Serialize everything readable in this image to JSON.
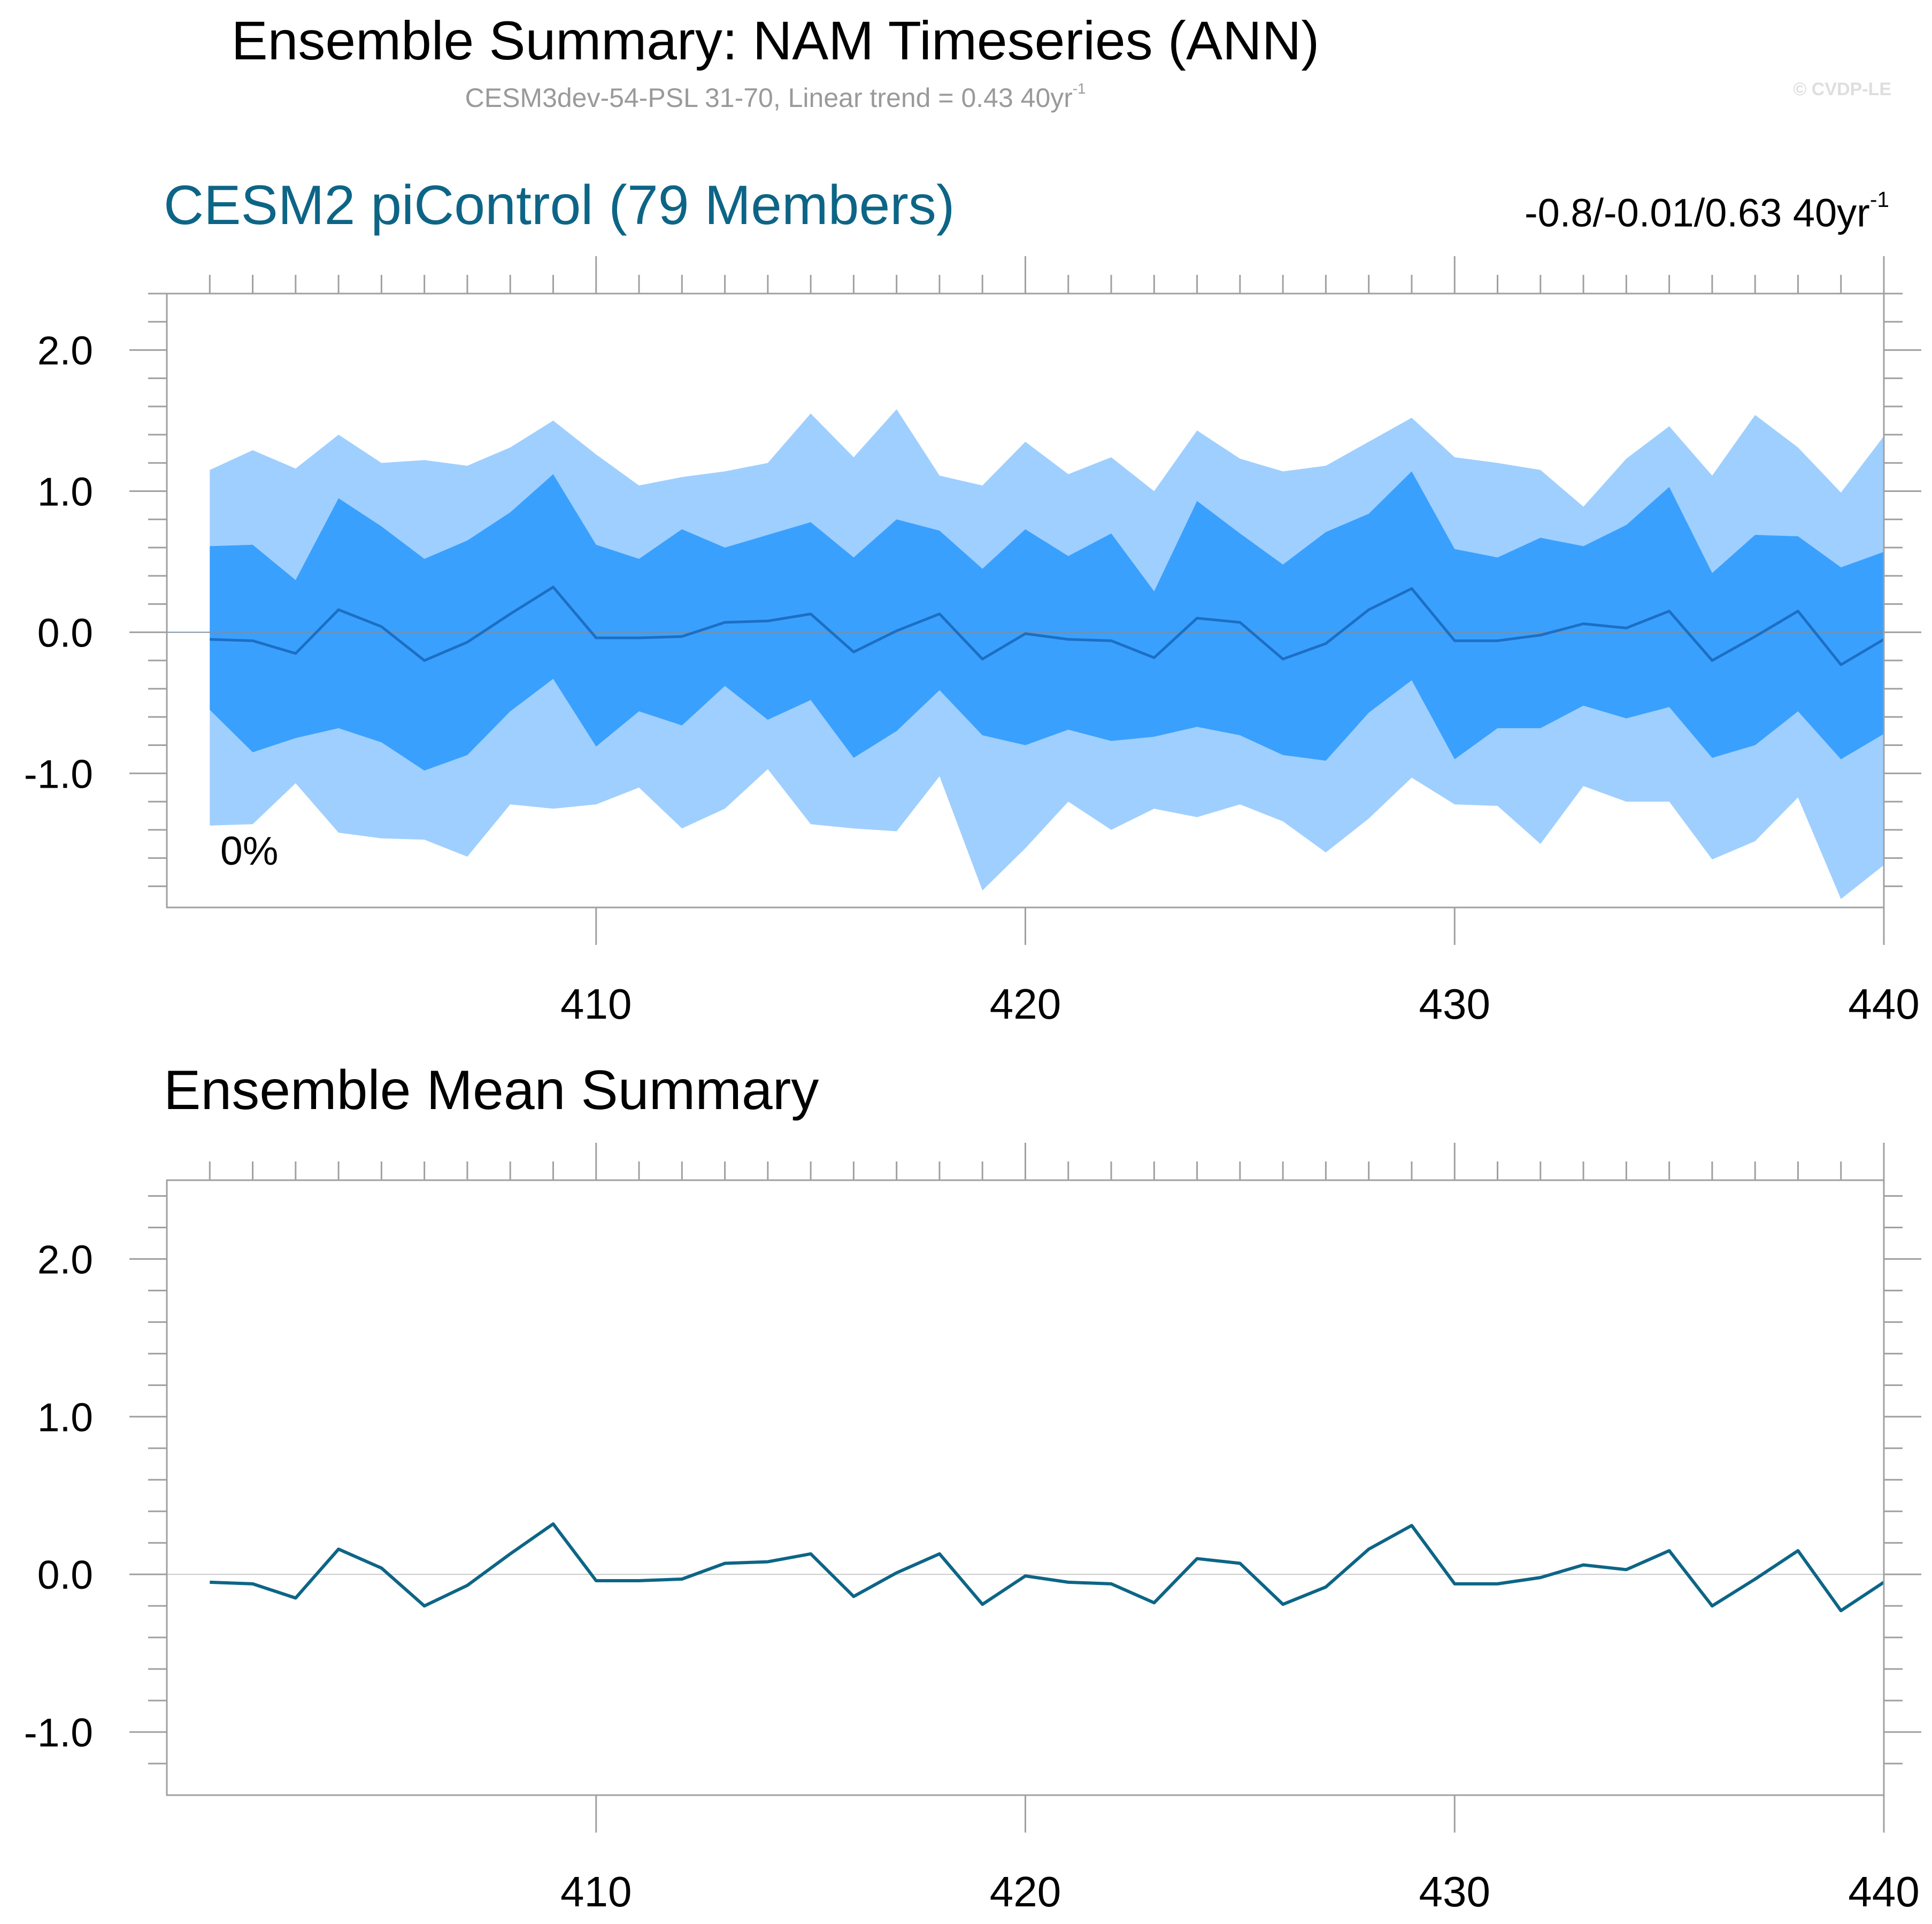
{
  "header": {
    "title": "Ensemble Summary: NAM Timeseries (ANN)",
    "subtitle": "CESM3dev-54-PSL 31-70, Linear trend = 0.43 40yr",
    "subtitle_sup": "-1",
    "copyright": "© CVDP-LE"
  },
  "colors": {
    "outer_band": "#9fcffe",
    "inner_band": "#3aa0fe",
    "ensemble_mean_line_panel1": "#1c6fc4",
    "ensemble_mean_line_panel2": "#0d6586",
    "panel1_title": "#0d6586",
    "frame": "#a0a0a0"
  },
  "chart_data": [
    {
      "type": "area",
      "title": "CESM2 piControl (79 Members)",
      "stats_text": "-0.8/-0.01/0.63 40yr",
      "stats_sup": "-1",
      "annotation": "0%",
      "xlim": [
        400,
        440
      ],
      "ylim": [
        -1.95,
        2.4
      ],
      "xticks": [
        410,
        420,
        430,
        440
      ],
      "xtick_labels": [
        "410",
        "420",
        "430",
        "440"
      ],
      "yticks": [
        -1.0,
        0.0,
        1.0,
        2.0
      ],
      "ytick_labels": [
        "-1.0",
        "0.0",
        "1.0",
        "2.0"
      ],
      "x": [
        401,
        402,
        403,
        404,
        405,
        406,
        407,
        408,
        409,
        410,
        411,
        412,
        413,
        414,
        415,
        416,
        417,
        418,
        419,
        420,
        421,
        422,
        423,
        424,
        425,
        426,
        427,
        428,
        429,
        430,
        431,
        432,
        433,
        434,
        435,
        436,
        437,
        438,
        439,
        440
      ],
      "series": [
        {
          "band": "max",
          "values": [
            1.15,
            1.29,
            1.16,
            1.4,
            1.2,
            1.22,
            1.18,
            1.31,
            1.5,
            1.26,
            1.04,
            1.1,
            1.14,
            1.2,
            1.55,
            1.24,
            1.58,
            1.11,
            1.04,
            1.35,
            1.12,
            1.24,
            1.0,
            1.43,
            1.23,
            1.14,
            1.18,
            1.35,
            1.52,
            1.24,
            1.2,
            1.15,
            0.89,
            1.23,
            1.46,
            1.11,
            1.54,
            1.31,
            0.99,
            1.39
          ]
        },
        {
          "band": "upper",
          "values": [
            0.61,
            0.62,
            0.37,
            0.95,
            0.75,
            0.52,
            0.65,
            0.85,
            1.12,
            0.62,
            0.52,
            0.73,
            0.6,
            0.69,
            0.78,
            0.53,
            0.8,
            0.72,
            0.45,
            0.73,
            0.54,
            0.7,
            0.29,
            0.93,
            0.7,
            0.48,
            0.71,
            0.84,
            1.14,
            0.59,
            0.53,
            0.67,
            0.61,
            0.76,
            1.03,
            0.42,
            0.69,
            0.68,
            0.46,
            0.57
          ]
        },
        {
          "name": "",
          "band": "mean",
          "values": [
            -0.05,
            -0.06,
            -0.15,
            0.16,
            0.04,
            -0.2,
            -0.07,
            0.13,
            0.32,
            -0.04,
            -0.04,
            -0.03,
            0.07,
            0.08,
            0.13,
            -0.14,
            0.01,
            0.13,
            -0.19,
            -0.01,
            -0.05,
            -0.06,
            -0.18,
            0.1,
            0.07,
            -0.19,
            -0.08,
            0.16,
            0.31,
            -0.06,
            -0.06,
            -0.02,
            0.06,
            0.03,
            0.15,
            -0.2,
            -0.03,
            0.15,
            -0.23,
            -0.05
          ]
        },
        {
          "band": "lower",
          "values": [
            -0.55,
            -0.85,
            -0.75,
            -0.68,
            -0.78,
            -0.98,
            -0.87,
            -0.56,
            -0.33,
            -0.81,
            -0.56,
            -0.66,
            -0.38,
            -0.62,
            -0.48,
            -0.89,
            -0.7,
            -0.41,
            -0.73,
            -0.8,
            -0.69,
            -0.77,
            -0.74,
            -0.67,
            -0.73,
            -0.87,
            -0.91,
            -0.57,
            -0.34,
            -0.9,
            -0.68,
            -0.68,
            -0.52,
            -0.61,
            -0.53,
            -0.89,
            -0.8,
            -0.56,
            -0.9,
            -0.72
          ]
        },
        {
          "band": "min",
          "values": [
            -1.37,
            -1.36,
            -1.07,
            -1.42,
            -1.46,
            -1.47,
            -1.59,
            -1.22,
            -1.25,
            -1.22,
            -1.1,
            -1.39,
            -1.25,
            -0.97,
            -1.36,
            -1.39,
            -1.41,
            -1.02,
            -1.83,
            -1.53,
            -1.2,
            -1.4,
            -1.25,
            -1.31,
            -1.22,
            -1.34,
            -1.56,
            -1.32,
            -1.03,
            -1.22,
            -1.23,
            -1.5,
            -1.09,
            -1.2,
            -1.2,
            -1.61,
            -1.48,
            -1.17,
            -1.89,
            -1.65
          ]
        }
      ]
    },
    {
      "type": "line",
      "title": "Ensemble Mean Summary",
      "xlim": [
        400,
        440
      ],
      "ylim": [
        -1.4,
        2.5
      ],
      "xticks": [
        410,
        420,
        430,
        440
      ],
      "xtick_labels": [
        "410",
        "420",
        "430",
        "440"
      ],
      "yticks": [
        -1.0,
        0.0,
        1.0,
        2.0
      ],
      "ytick_labels": [
        "-1.0",
        "0.0",
        "1.0",
        "2.0"
      ],
      "x": [
        401,
        402,
        403,
        404,
        405,
        406,
        407,
        408,
        409,
        410,
        411,
        412,
        413,
        414,
        415,
        416,
        417,
        418,
        419,
        420,
        421,
        422,
        423,
        424,
        425,
        426,
        427,
        428,
        429,
        430,
        431,
        432,
        433,
        434,
        435,
        436,
        437,
        438,
        439,
        440
      ],
      "series": [
        {
          "name": "",
          "values": [
            -0.05,
            -0.06,
            -0.15,
            0.16,
            0.04,
            -0.2,
            -0.07,
            0.13,
            0.32,
            -0.04,
            -0.04,
            -0.03,
            0.07,
            0.08,
            0.13,
            -0.14,
            0.01,
            0.13,
            -0.19,
            -0.01,
            -0.05,
            -0.06,
            -0.18,
            0.1,
            0.07,
            -0.19,
            -0.08,
            0.16,
            0.31,
            -0.06,
            -0.06,
            -0.02,
            0.06,
            0.03,
            0.15,
            -0.2,
            -0.03,
            0.15,
            -0.23,
            -0.05
          ]
        }
      ]
    }
  ]
}
